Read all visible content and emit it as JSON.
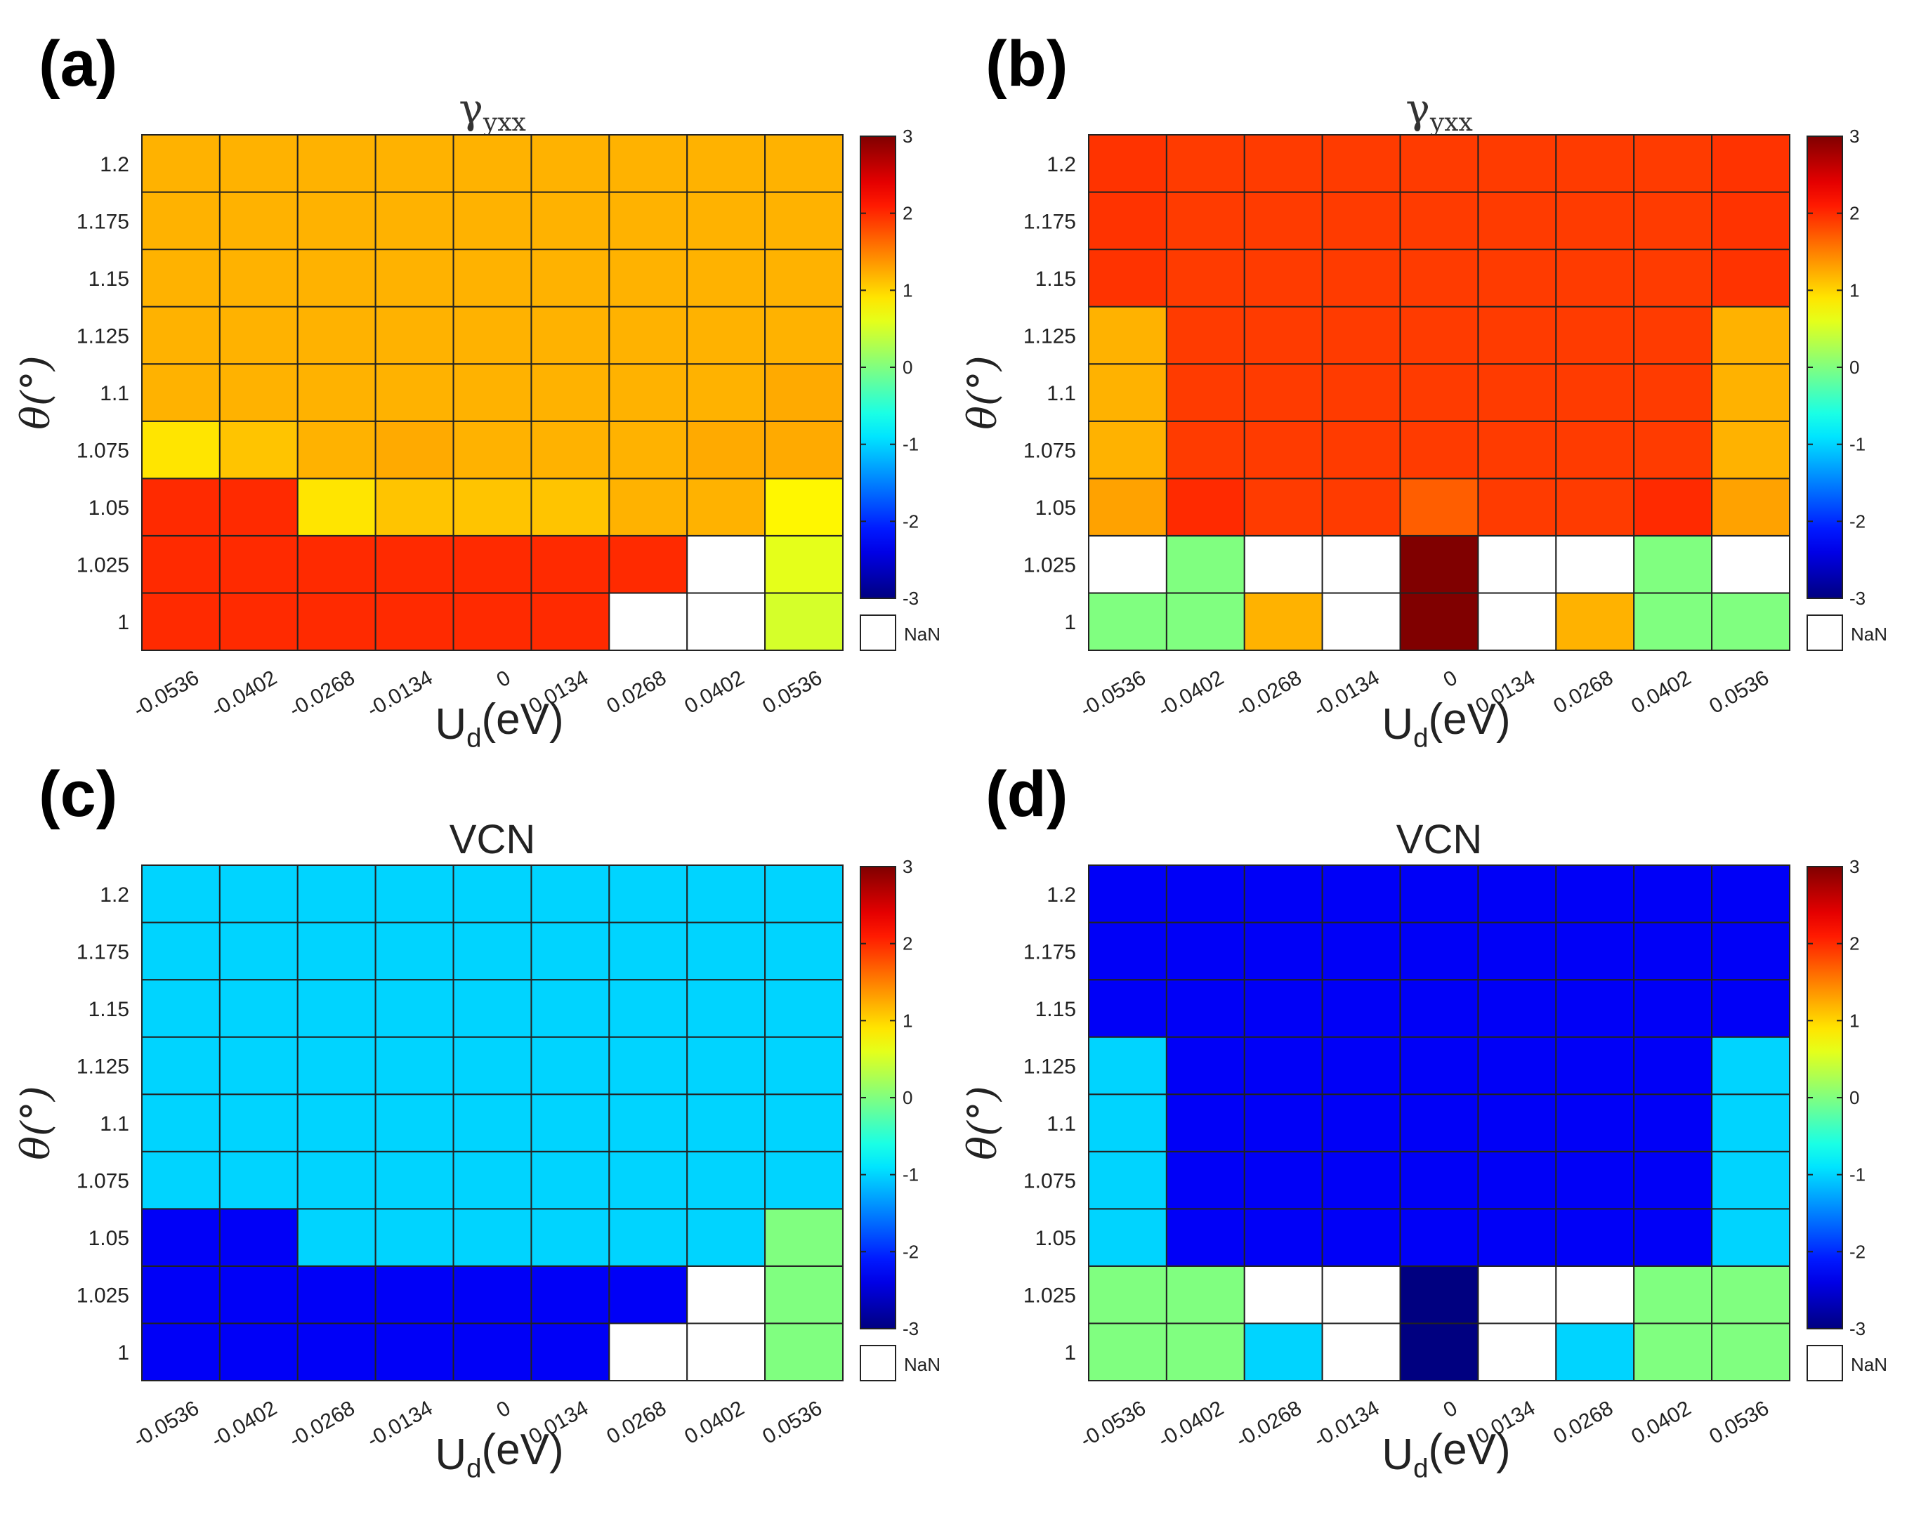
{
  "chart_data": [
    {
      "type": "heatmap",
      "panel_label": "(a)",
      "title": {
        "base": "γ",
        "sub": "yxx"
      },
      "xlabel": {
        "base": "U",
        "sub": "d",
        "suffix": "(eV)"
      },
      "ylabel": "θ(°)",
      "x": [
        "-0.0536",
        "-0.0402",
        "-0.0268",
        "-0.0134",
        "0",
        "0.0134",
        "0.0268",
        "0.0402",
        "0.0536"
      ],
      "y": [
        "1",
        "1.025",
        "1.05",
        "1.075",
        "1.1",
        "1.125",
        "1.15",
        "1.175",
        "1.2"
      ],
      "clim": [
        -3,
        3
      ],
      "colormap": "jet",
      "colorbar_ticks": [
        "3",
        "2",
        "1",
        "0",
        "-1",
        "-2",
        "-3"
      ],
      "nan_label": "NaN",
      "values": [
        [
          2.0,
          2.0,
          2.0,
          2.0,
          2.0,
          2.0,
          null,
          null,
          0.5
        ],
        [
          2.0,
          2.0,
          2.0,
          2.0,
          2.0,
          2.0,
          2.0,
          null,
          0.6
        ],
        [
          2.0,
          2.0,
          0.9,
          1.1,
          1.1,
          1.1,
          1.2,
          1.2,
          0.8
        ],
        [
          0.9,
          1.1,
          1.2,
          1.25,
          1.2,
          1.2,
          1.2,
          1.25,
          1.25
        ],
        [
          1.2,
          1.2,
          1.2,
          1.2,
          1.2,
          1.2,
          1.2,
          1.2,
          1.25
        ],
        [
          1.2,
          1.2,
          1.2,
          1.2,
          1.2,
          1.2,
          1.2,
          1.2,
          1.2
        ],
        [
          1.2,
          1.2,
          1.2,
          1.2,
          1.2,
          1.2,
          1.2,
          1.2,
          1.2
        ],
        [
          1.2,
          1.2,
          1.2,
          1.2,
          1.2,
          1.2,
          1.2,
          1.2,
          1.2
        ],
        [
          1.2,
          1.2,
          1.2,
          1.2,
          1.2,
          1.2,
          1.2,
          1.2,
          1.2
        ]
      ]
    },
    {
      "type": "heatmap",
      "panel_label": "(b)",
      "title": {
        "base": "γ",
        "sub": "yxx"
      },
      "xlabel": {
        "base": "U",
        "sub": "d",
        "suffix": "(eV)"
      },
      "ylabel": "θ(°)",
      "x": [
        "-0.0536",
        "-0.0402",
        "-0.0268",
        "-0.0134",
        "0",
        "0.0134",
        "0.0268",
        "0.0402",
        "0.0536"
      ],
      "y": [
        "1",
        "1.025",
        "1.05",
        "1.075",
        "1.1",
        "1.125",
        "1.15",
        "1.175",
        "1.2"
      ],
      "clim": [
        -3,
        3
      ],
      "colormap": "jet",
      "colorbar_ticks": [
        "3",
        "2",
        "1",
        "0",
        "-1",
        "-2",
        "-3"
      ],
      "nan_label": "NaN",
      "values": [
        [
          0.0,
          0.0,
          1.2,
          null,
          3.0,
          null,
          1.2,
          0.0,
          0.0
        ],
        [
          null,
          0.0,
          null,
          null,
          3.0,
          null,
          null,
          0.0,
          null
        ],
        [
          1.3,
          2.0,
          1.9,
          1.9,
          1.7,
          1.9,
          1.9,
          2.0,
          1.3
        ],
        [
          1.2,
          1.9,
          1.9,
          1.9,
          1.9,
          1.9,
          1.9,
          1.9,
          1.2
        ],
        [
          1.2,
          1.9,
          1.9,
          1.9,
          1.9,
          1.9,
          1.9,
          1.9,
          1.2
        ],
        [
          1.2,
          1.9,
          1.9,
          1.9,
          1.9,
          1.9,
          1.9,
          1.9,
          1.2
        ],
        [
          1.95,
          1.9,
          1.9,
          1.9,
          1.9,
          1.9,
          1.9,
          1.9,
          1.95
        ],
        [
          1.95,
          1.9,
          1.9,
          1.9,
          1.9,
          1.9,
          1.9,
          1.9,
          1.95
        ],
        [
          1.95,
          1.9,
          1.9,
          1.9,
          1.9,
          1.9,
          1.9,
          1.9,
          1.95
        ]
      ]
    },
    {
      "type": "heatmap",
      "panel_label": "(c)",
      "title": {
        "base": "VCN",
        "sub": ""
      },
      "xlabel": {
        "base": "U",
        "sub": "d",
        "suffix": "(eV)"
      },
      "ylabel": "θ(°)",
      "x": [
        "-0.0536",
        "-0.0402",
        "-0.0268",
        "-0.0134",
        "0",
        "0.0134",
        "0.0268",
        "0.0402",
        "0.0536"
      ],
      "y": [
        "1",
        "1.025",
        "1.05",
        "1.075",
        "1.1",
        "1.125",
        "1.15",
        "1.175",
        "1.2"
      ],
      "clim": [
        -3,
        3
      ],
      "colormap": "jet",
      "colorbar_ticks": [
        "3",
        "2",
        "1",
        "0",
        "-1",
        "-2",
        "-3"
      ],
      "nan_label": "NaN",
      "values": [
        [
          -2.3,
          -2.3,
          -2.3,
          -2.3,
          -2.3,
          -2.3,
          null,
          null,
          0.0
        ],
        [
          -2.3,
          -2.3,
          -2.3,
          -2.3,
          -2.3,
          -2.3,
          -2.3,
          null,
          0.0
        ],
        [
          -2.3,
          -2.3,
          -1.0,
          -1.0,
          -1.0,
          -1.0,
          -1.0,
          -1.0,
          0.0
        ],
        [
          -1.0,
          -1.0,
          -1.0,
          -1.0,
          -1.0,
          -1.0,
          -1.0,
          -1.0,
          -1.0
        ],
        [
          -1.0,
          -1.0,
          -1.0,
          -1.0,
          -1.0,
          -1.0,
          -1.0,
          -1.0,
          -1.0
        ],
        [
          -1.0,
          -1.0,
          -1.0,
          -1.0,
          -1.0,
          -1.0,
          -1.0,
          -1.0,
          -1.0
        ],
        [
          -1.0,
          -1.0,
          -1.0,
          -1.0,
          -1.0,
          -1.0,
          -1.0,
          -1.0,
          -1.0
        ],
        [
          -1.0,
          -1.0,
          -1.0,
          -1.0,
          -1.0,
          -1.0,
          -1.0,
          -1.0,
          -1.0
        ],
        [
          -1.0,
          -1.0,
          -1.0,
          -1.0,
          -1.0,
          -1.0,
          -1.0,
          -1.0,
          -1.0
        ]
      ]
    },
    {
      "type": "heatmap",
      "panel_label": "(d)",
      "title": {
        "base": "VCN",
        "sub": ""
      },
      "xlabel": {
        "base": "U",
        "sub": "d",
        "suffix": "(eV)"
      },
      "ylabel": "θ(°)",
      "x": [
        "-0.0536",
        "-0.0402",
        "-0.0268",
        "-0.0134",
        "0",
        "0.0134",
        "0.0268",
        "0.0402",
        "0.0536"
      ],
      "y": [
        "1",
        "1.025",
        "1.05",
        "1.075",
        "1.1",
        "1.125",
        "1.15",
        "1.175",
        "1.2"
      ],
      "clim": [
        -3,
        3
      ],
      "colormap": "jet",
      "colorbar_ticks": [
        "3",
        "2",
        "1",
        "0",
        "-1",
        "-2",
        "-3"
      ],
      "nan_label": "NaN",
      "values": [
        [
          0.0,
          0.0,
          -1.0,
          null,
          -3.0,
          null,
          -1.0,
          0.0,
          0.0
        ],
        [
          0.0,
          0.0,
          null,
          null,
          -3.0,
          null,
          null,
          0.0,
          0.0
        ],
        [
          -1.0,
          -2.3,
          -2.3,
          -2.3,
          -2.3,
          -2.3,
          -2.3,
          -2.3,
          -1.0
        ],
        [
          -1.0,
          -2.3,
          -2.3,
          -2.3,
          -2.3,
          -2.3,
          -2.3,
          -2.3,
          -1.0
        ],
        [
          -1.0,
          -2.3,
          -2.3,
          -2.3,
          -2.3,
          -2.3,
          -2.3,
          -2.3,
          -1.0
        ],
        [
          -1.0,
          -2.3,
          -2.3,
          -2.3,
          -2.3,
          -2.3,
          -2.3,
          -2.3,
          -1.0
        ],
        [
          -2.3,
          -2.3,
          -2.3,
          -2.3,
          -2.3,
          -2.3,
          -2.3,
          -2.3,
          -2.3
        ],
        [
          -2.3,
          -2.3,
          -2.3,
          -2.3,
          -2.3,
          -2.3,
          -2.3,
          -2.3,
          -2.3
        ],
        [
          -2.3,
          -2.3,
          -2.3,
          -2.3,
          -2.3,
          -2.3,
          -2.3,
          -2.3,
          -2.3
        ]
      ]
    }
  ]
}
